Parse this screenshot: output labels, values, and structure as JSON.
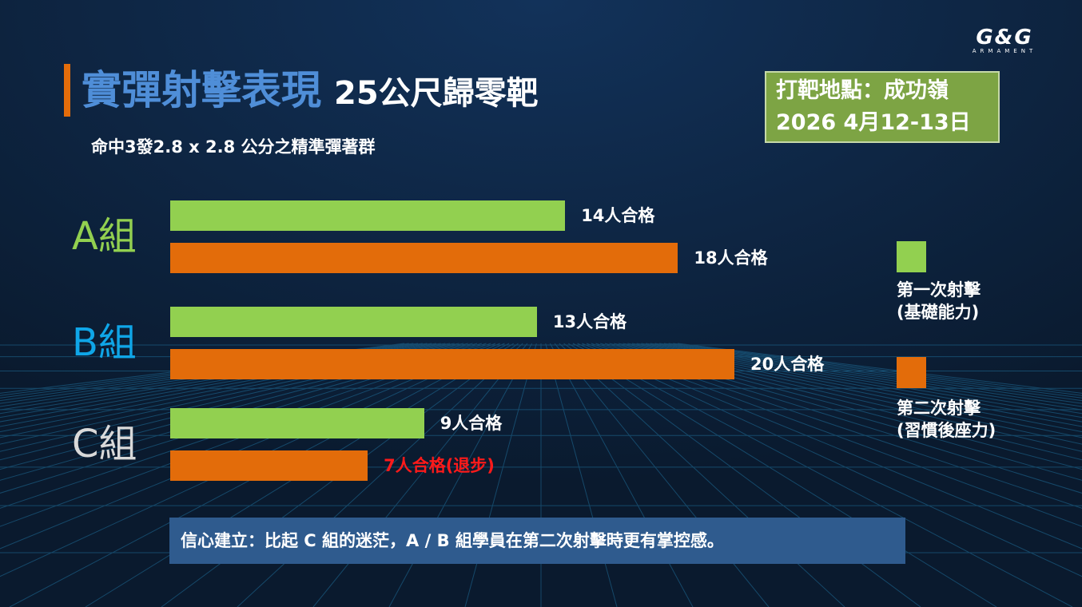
{
  "logo": {
    "main": "G&G",
    "sub": "ARMAMENT"
  },
  "title": {
    "main": "實彈射擊表現",
    "sub": "25公尺歸零靶"
  },
  "subtitle": "命中3發2.8 x 2.8 公分之精準彈著群",
  "location": {
    "line1": "打靶地點：成功嶺",
    "line2": "2026 4月12-13日"
  },
  "note": "信心建立：比起 C 組的迷茫，A / B 組學員在第二次射擊時更有掌控感。",
  "colors": {
    "first": "#92d050",
    "second": "#e36c0a",
    "regress": "#ff1a1a",
    "label_a": "#92d050",
    "label_b": "#0fa6e8",
    "label_c": "#d9d9d9"
  },
  "chart_data": {
    "type": "bar",
    "orientation": "horizontal",
    "categories": [
      "A組",
      "B組",
      "C組"
    ],
    "series": [
      {
        "name": "第一次射擊\n(基礎能力)",
        "values": [
          14,
          13,
          9
        ],
        "labels": [
          "14人合格",
          "13人合格",
          "9人合格"
        ]
      },
      {
        "name": "第二次射擊\n(習慣後座力)",
        "values": [
          18,
          20,
          7
        ],
        "labels": [
          "18人合格",
          "20人合格",
          "7人合格(退步)"
        ]
      }
    ],
    "legend": [
      "第一次射擊",
      "(基礎能力)",
      "第二次射擊",
      "(習慣後座力)"
    ],
    "xlim": [
      0,
      22.5
    ],
    "legend_position": "right",
    "grid": false
  }
}
